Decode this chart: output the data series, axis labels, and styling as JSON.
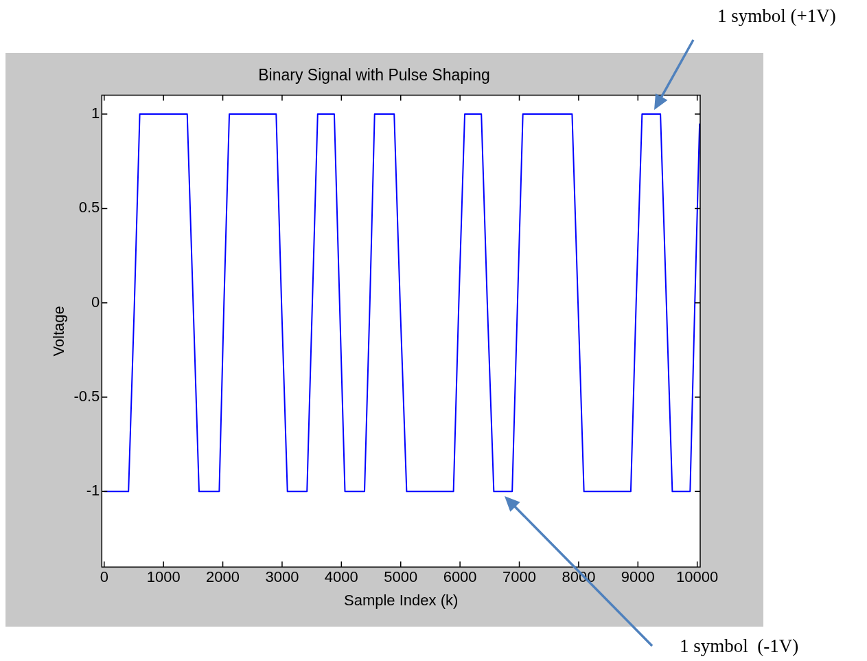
{
  "chart_data": {
    "type": "line",
    "title": "Binary Signal with Pulse Shaping",
    "xlabel": "Sample Index (k)",
    "ylabel": "Voltage",
    "x": [
      0,
      410,
      510,
      600,
      1400,
      1500,
      1600,
      1940,
      2020,
      2110,
      2900,
      2990,
      3090,
      3420,
      3510,
      3600,
      3880,
      3970,
      4060,
      4390,
      4480,
      4560,
      4890,
      4990,
      5100,
      5890,
      5980,
      6080,
      6360,
      6460,
      6570,
      6880,
      6970,
      7060,
      7890,
      7990,
      8090,
      8880,
      8970,
      9070,
      9380,
      9480,
      9580,
      9880,
      9960,
      10040
    ],
    "series": [
      {
        "color": "#0000ff",
        "values": [
          -1,
          -1,
          0,
          1,
          1,
          0,
          -1,
          -1,
          0,
          1,
          1,
          0,
          -1,
          -1,
          0,
          1,
          1,
          0,
          -1,
          -1,
          0,
          1,
          1,
          0,
          -1,
          -1,
          0,
          1,
          1,
          0,
          -1,
          -1,
          0,
          1,
          1,
          0,
          -1,
          -1,
          0,
          1,
          1,
          0,
          -1,
          -1,
          0,
          0.95
        ]
      }
    ],
    "xlim": [
      -40,
      10050
    ],
    "ylim": [
      -1.4,
      1.1
    ],
    "xticks": [
      0,
      1000,
      2000,
      3000,
      4000,
      5000,
      6000,
      7000,
      8000,
      9000,
      10000
    ],
    "yticks": [
      -1,
      -0.5,
      0,
      0.5,
      1
    ],
    "grid": false,
    "legend": false,
    "marker": "none",
    "line_style": "solid",
    "annotations": [
      "1 symbol (+1V)",
      "1 symbol  (-1V)"
    ]
  }
}
